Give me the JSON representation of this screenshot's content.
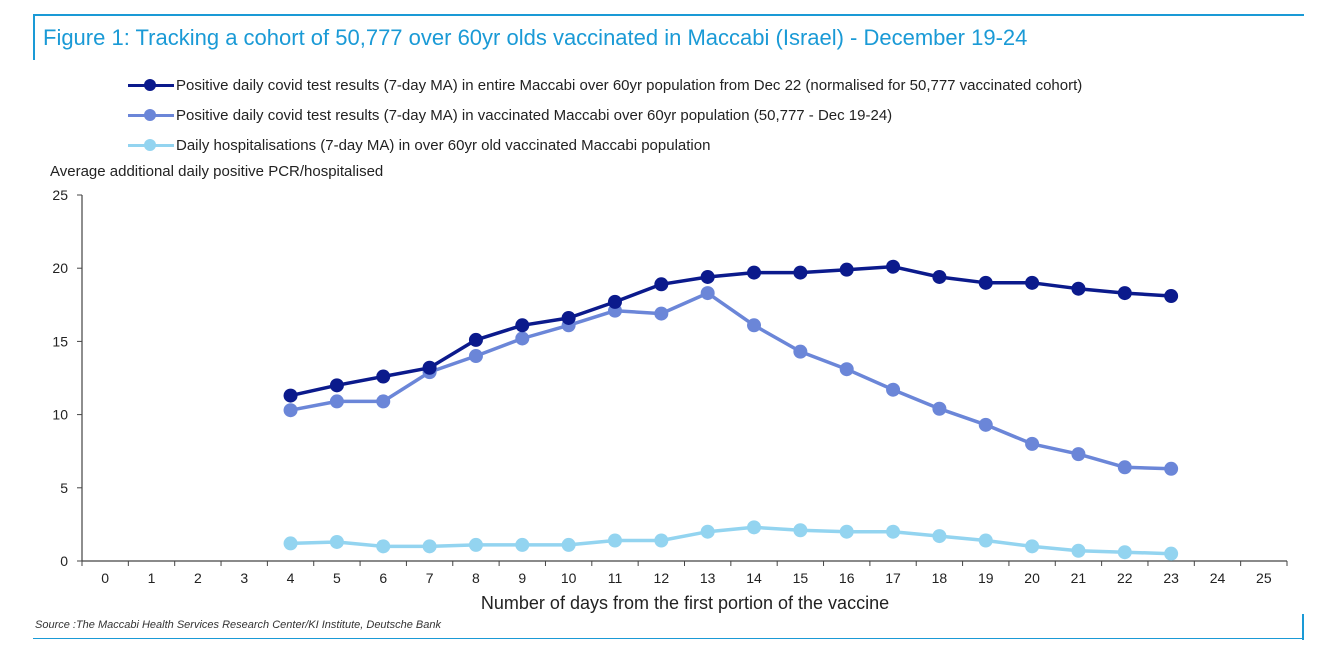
{
  "header": {
    "title": "Figure 1: Tracking a cohort of 50,777 over 60yr olds vaccinated in Maccabi (Israel) - December 19-24"
  },
  "footer": {
    "source": "Source :The Maccabi Health Services Research Center/KI Institute, Deutsche Bank"
  },
  "colors": {
    "frame": "#1a9ad6",
    "series_dark": "#0b1a8c",
    "series_mid": "#6b86d8",
    "series_light": "#93d4f0"
  },
  "chart_data": {
    "type": "line",
    "title": "Figure 1: Tracking a cohort of 50,777 over 60yr olds vaccinated in Maccabi (Israel) - December 19-24",
    "ylabel": "Average additional daily positive PCR/hospitalised",
    "xlabel": "Number of days from the first portion of the vaccine",
    "xlim": [
      0,
      25
    ],
    "ylim": [
      0,
      25
    ],
    "x_ticks": [
      0,
      1,
      2,
      3,
      4,
      5,
      6,
      7,
      8,
      9,
      10,
      11,
      12,
      13,
      14,
      15,
      16,
      17,
      18,
      19,
      20,
      21,
      22,
      23,
      24,
      25
    ],
    "y_ticks": [
      0,
      5,
      10,
      15,
      20,
      25
    ],
    "grid": false,
    "legend_position": "top",
    "x": [
      4,
      5,
      6,
      7,
      8,
      9,
      10,
      11,
      12,
      13,
      14,
      15,
      16,
      17,
      18,
      19,
      20,
      21,
      22,
      23
    ],
    "series": [
      {
        "name": "Positive daily covid test results (7-day MA) in entire Maccabi over 60yr population from Dec 22 (normalised for 50,777 vaccinated cohort)",
        "color": "#0b1a8c",
        "values": [
          11.3,
          12.0,
          12.6,
          13.2,
          15.1,
          16.1,
          16.6,
          17.7,
          18.9,
          19.4,
          19.7,
          19.7,
          19.9,
          20.1,
          19.4,
          19.0,
          19.0,
          18.6,
          18.3,
          18.1
        ]
      },
      {
        "name": "Positive daily covid test results (7-day MA) in vaccinated Maccabi over 60yr population (50,777 - Dec 19-24)",
        "color": "#6b86d8",
        "values": [
          10.3,
          10.9,
          10.9,
          12.9,
          14.0,
          15.2,
          16.1,
          17.1,
          16.9,
          18.3,
          16.1,
          14.3,
          13.1,
          11.7,
          10.4,
          9.3,
          8.0,
          7.3,
          6.4,
          6.3
        ]
      },
      {
        "name": "Daily hospitalisations (7-day MA) in over 60yr old vaccinated Maccabi population",
        "color": "#93d4f0",
        "values": [
          1.2,
          1.3,
          1.0,
          1.0,
          1.1,
          1.1,
          1.1,
          1.4,
          1.4,
          2.0,
          2.3,
          2.1,
          2.0,
          2.0,
          1.7,
          1.4,
          1.0,
          0.7,
          0.6,
          0.5
        ]
      }
    ]
  }
}
